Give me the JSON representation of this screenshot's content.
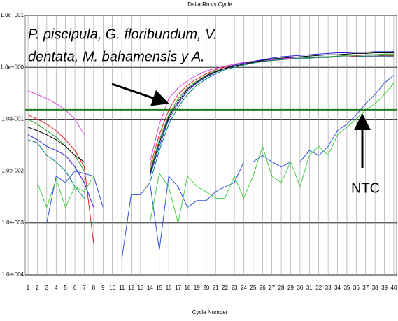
{
  "chart_data": {
    "type": "line",
    "title": "Delta Rn vs Cycle",
    "x_label": "Cycle Number",
    "annotation": [
      "P. piscipula, G. floribundum, V.",
      "dentata, M. bahamensis y A."
    ],
    "ntc_label": "NTC",
    "log_scale": true,
    "grid": true,
    "threshold": 0.15,
    "threshold_color": "#1f7a1f",
    "x": [
      1,
      2,
      3,
      4,
      5,
      6,
      7,
      8,
      9,
      10,
      11,
      12,
      13,
      14,
      15,
      16,
      17,
      18,
      19,
      20,
      21,
      22,
      23,
      24,
      25,
      26,
      27,
      28,
      29,
      30,
      31,
      32,
      33,
      34,
      35,
      36,
      37,
      38,
      39,
      40
    ],
    "xlim": [
      0.7,
      40.3
    ],
    "xticks": [
      1,
      2,
      3,
      4,
      5,
      6,
      7,
      8,
      9,
      10,
      11,
      12,
      13,
      14,
      15,
      16,
      17,
      18,
      19,
      20,
      21,
      22,
      23,
      24,
      25,
      26,
      27,
      28,
      29,
      30,
      31,
      32,
      33,
      34,
      35,
      36,
      37,
      38,
      39,
      40
    ],
    "ylim": [
      0.0001,
      10
    ],
    "yticks": [
      {
        "value": 10,
        "label": "1.0e+001"
      },
      {
        "value": 1,
        "label": "1.0e+000"
      },
      {
        "value": 0.1,
        "label": "1.0e-001"
      },
      {
        "value": 0.01,
        "label": "1.0e-002"
      },
      {
        "value": 0.001,
        "label": "1.0e-003"
      },
      {
        "value": 0.0001,
        "label": "1.0e-004"
      }
    ],
    "series": [
      {
        "color": "#e040e0",
        "values": [
          0.35,
          0.3,
          0.25,
          0.2,
          0.15,
          0.1,
          0.05,
          null,
          null,
          null,
          null,
          null,
          null,
          0.015,
          0.08,
          0.25,
          0.4,
          0.55,
          0.7,
          0.85,
          0.95,
          1.05,
          1.15,
          1.25,
          1.3,
          1.35,
          1.4,
          1.45,
          1.5,
          1.5,
          1.55,
          1.55,
          1.6,
          1.6,
          1.6,
          1.6,
          1.6,
          1.6,
          1.6,
          1.6
        ]
      },
      {
        "color": "#e02020",
        "values": [
          0.12,
          0.1,
          0.08,
          0.06,
          0.04,
          0.025,
          0.012,
          0.0004,
          null,
          null,
          null,
          null,
          null,
          0.012,
          0.05,
          0.15,
          0.3,
          0.45,
          0.6,
          0.75,
          0.9,
          1.0,
          1.1,
          1.2,
          1.25,
          1.3,
          1.35,
          1.4,
          1.45,
          1.5,
          1.5,
          1.55,
          1.55,
          1.6,
          1.6,
          1.65,
          1.65,
          1.65,
          1.7,
          1.7
        ]
      },
      {
        "color": "#20a020",
        "values": [
          0.1,
          0.08,
          0.06,
          0.045,
          0.03,
          0.02,
          0.01,
          null,
          null,
          null,
          null,
          null,
          null,
          0.01,
          0.04,
          0.12,
          0.25,
          0.4,
          0.55,
          0.7,
          0.85,
          0.95,
          1.05,
          1.15,
          1.2,
          1.3,
          1.35,
          1.4,
          1.45,
          1.5,
          1.55,
          1.6,
          1.6,
          1.65,
          1.7,
          1.7,
          1.75,
          1.75,
          1.8,
          1.8
        ]
      },
      {
        "color": "#2020e0",
        "values": [
          0.05,
          0.04,
          0.03,
          0.025,
          0.02,
          0.012,
          0.006,
          0.002,
          null,
          null,
          null,
          null,
          null,
          0.008,
          0.03,
          0.1,
          0.2,
          0.35,
          0.5,
          0.65,
          0.8,
          0.95,
          1.1,
          1.2,
          1.3,
          1.4,
          1.5,
          1.6,
          1.65,
          1.7,
          1.75,
          1.8,
          1.85,
          1.9,
          1.9,
          1.95,
          1.95,
          2.0,
          2.0,
          2.0
        ]
      },
      {
        "color": "#000000",
        "values": [
          0.07,
          0.06,
          0.05,
          0.04,
          0.03,
          0.02,
          0.015,
          null,
          null,
          null,
          null,
          null,
          null,
          0.009,
          0.035,
          0.11,
          0.22,
          0.38,
          0.52,
          0.68,
          0.82,
          0.95,
          1.05,
          1.15,
          1.25,
          1.35,
          1.45,
          1.5,
          1.55,
          1.6,
          1.65,
          1.7,
          1.75,
          1.75,
          1.8,
          1.85,
          1.85,
          1.9,
          1.9,
          1.9
        ]
      },
      {
        "color": "#008080",
        "values": [
          0.04,
          0.035,
          0.02,
          0.015,
          0.01,
          0.005,
          0.003,
          null,
          null,
          null,
          null,
          null,
          null,
          0.006,
          0.025,
          0.08,
          0.17,
          0.3,
          0.45,
          0.6,
          0.75,
          0.9,
          1.0,
          1.1,
          1.2,
          1.3,
          1.35,
          1.4,
          1.45,
          1.5,
          1.5,
          1.55,
          1.55,
          1.6,
          1.6,
          1.6,
          1.65,
          1.65,
          1.65,
          1.65
        ]
      },
      {
        "color": "#3050e0",
        "values": [
          null,
          null,
          0.001,
          0.008,
          0.006,
          0.01,
          0.009,
          0.008,
          0.002,
          null,
          0.0002,
          0.0035,
          0.0035,
          0.006,
          0.0003,
          0.008,
          0.005,
          0.002,
          0.0027,
          0.0027,
          0.004,
          0.005,
          0.006,
          0.015,
          0.015,
          0.02,
          0.015,
          0.012,
          0.015,
          0.015,
          0.025,
          0.02,
          0.03,
          0.06,
          0.08,
          0.12,
          0.2,
          0.3,
          0.5,
          0.7
        ]
      },
      {
        "color": "#40d040",
        "values": [
          null,
          0.006,
          0.002,
          0.007,
          0.002,
          0.005,
          0.004,
          0.008,
          null,
          0.01,
          null,
          null,
          null,
          0.001,
          0.009,
          0.005,
          0.001,
          0.008,
          0.005,
          0.004,
          0.003,
          0.003,
          0.008,
          0.003,
          0.008,
          0.03,
          0.008,
          0.006,
          0.015,
          0.005,
          0.02,
          0.03,
          0.02,
          0.05,
          0.07,
          0.1,
          0.15,
          0.2,
          0.3,
          0.5
        ]
      }
    ]
  }
}
